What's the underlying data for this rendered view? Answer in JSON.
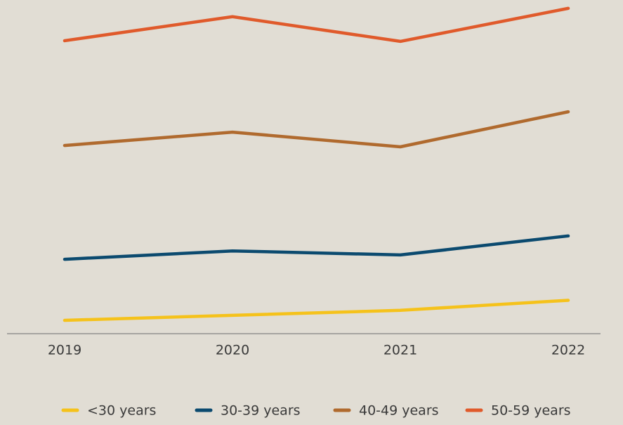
{
  "chart_data": {
    "type": "line",
    "categories": [
      "2019",
      "2020",
      "2021",
      "2022"
    ],
    "series": [
      {
        "name": "<30 years",
        "color": "#f5c21b",
        "values": [
          4,
          5.5,
          7,
          10
        ]
      },
      {
        "name": "30-39 years",
        "color": "#0b4a6f",
        "values": [
          22.3,
          24.8,
          23.6,
          29.3
        ]
      },
      {
        "name": "40-49 years",
        "color": "#b06a2e",
        "values": [
          56.4,
          60.4,
          56,
          66.5
        ]
      },
      {
        "name": "50-59 years",
        "color": "#e05a2b",
        "values": [
          87.8,
          95,
          87.6,
          97.5
        ]
      }
    ],
    "ylim": [
      0,
      100
    ],
    "legend": "bottom"
  }
}
